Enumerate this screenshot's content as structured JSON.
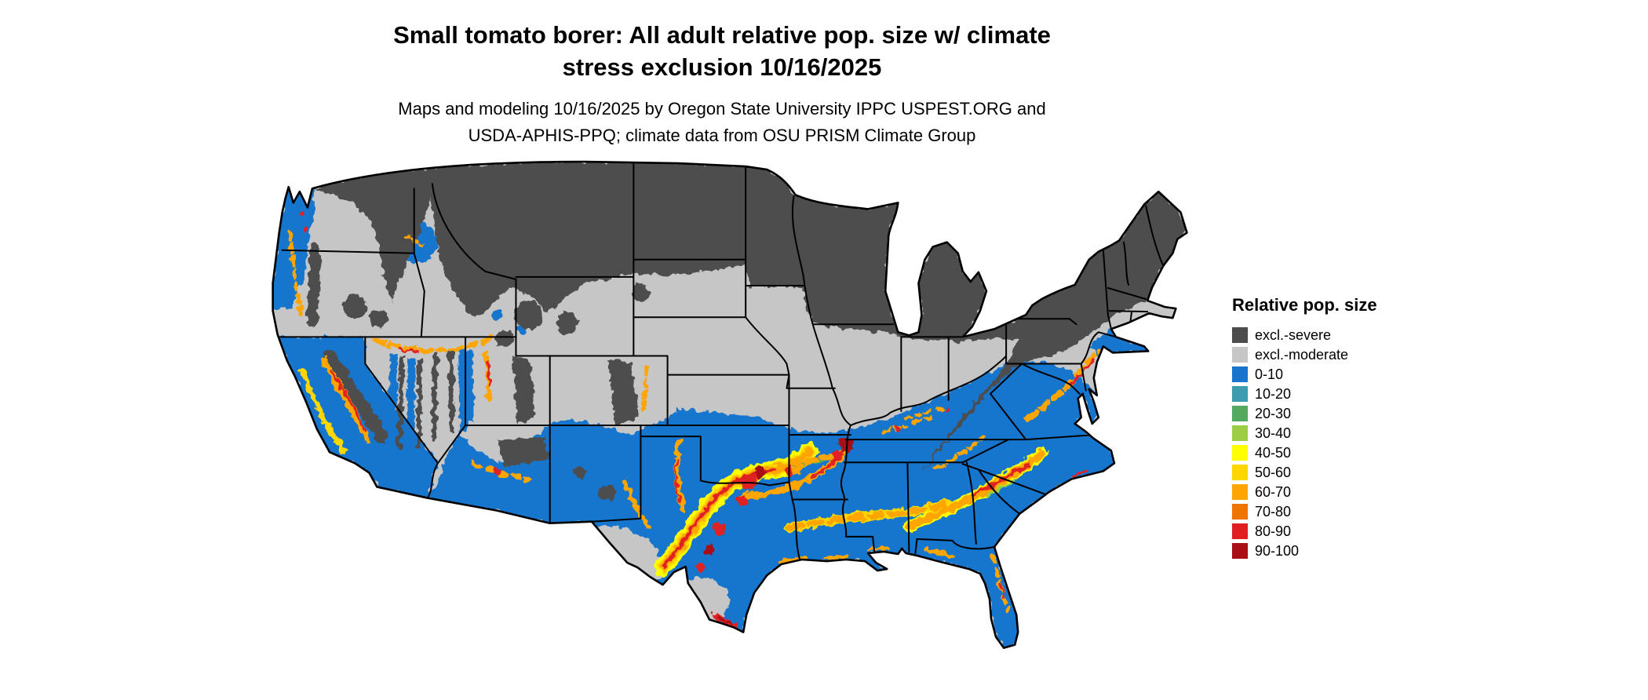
{
  "title": {
    "line1": "Small tomato borer: All adult relative pop. size w/ climate",
    "line2": "stress exclusion 10/16/2025"
  },
  "subtitle": {
    "line1": "Maps and modeling 10/16/2025 by Oregon State University IPPC USPEST.ORG and",
    "line2": "USDA-APHIS-PPQ; climate data from OSU PRISM Climate Group"
  },
  "legend": {
    "title": "Relative pop. size",
    "items": [
      {
        "label": "excl.-severe",
        "color": "#4D4D4D"
      },
      {
        "label": "excl.-moderate",
        "color": "#C6C6C6"
      },
      {
        "label": "0-10",
        "color": "#1874CD"
      },
      {
        "label": "10-20",
        "color": "#3F9BAF"
      },
      {
        "label": "20-30",
        "color": "#55A860"
      },
      {
        "label": "30-40",
        "color": "#9BCD45"
      },
      {
        "label": "40-50",
        "color": "#FFFF00"
      },
      {
        "label": "50-60",
        "color": "#FFD700"
      },
      {
        "label": "60-70",
        "color": "#FFA500"
      },
      {
        "label": "70-80",
        "color": "#EE7600"
      },
      {
        "label": "80-90",
        "color": "#E02020"
      },
      {
        "label": "90-100",
        "color": "#A91016"
      }
    ]
  }
}
